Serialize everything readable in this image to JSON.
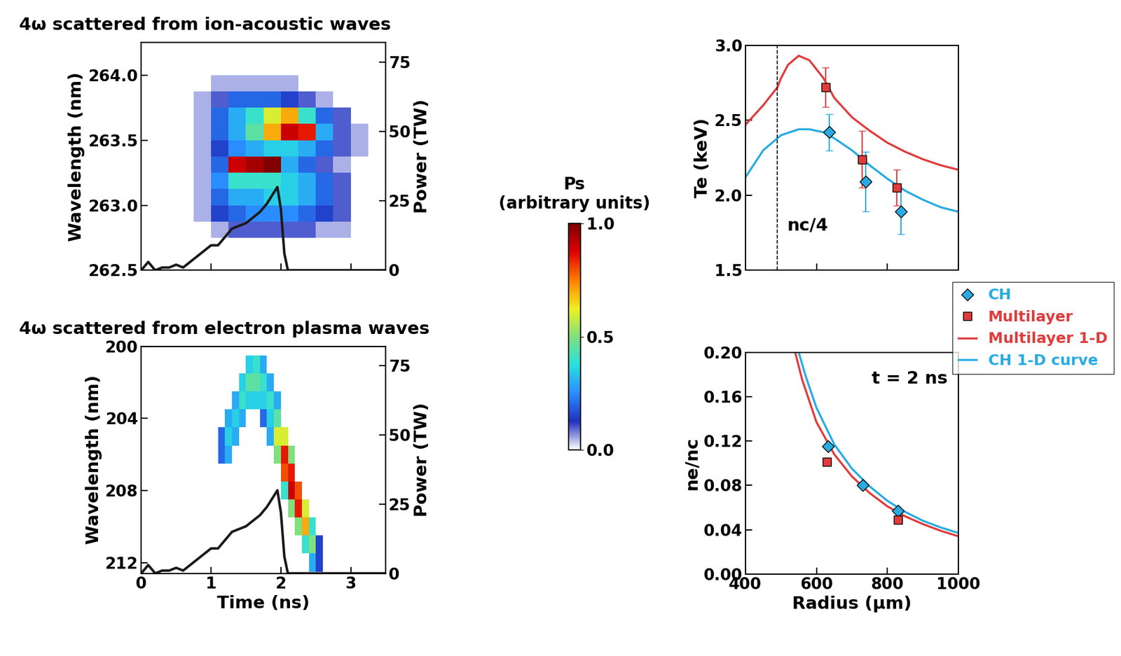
{
  "chart_data": [
    {
      "type": "heatmap",
      "title": "4ω scattered from ion-acoustic waves",
      "ylabel": "Wavelength (nm)",
      "y2label": "Power (TW)",
      "xlim": [
        0,
        3.5
      ],
      "xticks": [
        0,
        1,
        2,
        3
      ],
      "ylim": [
        262.5,
        264.25
      ],
      "yticks": [
        262.5,
        263.0,
        263.5,
        264.0
      ],
      "y2lim": [
        0,
        82
      ],
      "y2ticks": [
        0,
        25,
        50,
        75
      ],
      "tick_labels": "y",
      "x_edges": [
        0.75,
        1.0,
        1.25,
        1.5,
        1.75,
        2.0,
        2.25,
        2.5,
        2.75,
        3.0,
        3.25
      ],
      "y_edges": [
        262.75,
        262.875,
        263.0,
        263.125,
        263.25,
        263.375,
        263.5,
        263.625,
        263.75,
        263.875,
        264.0
      ],
      "cells": [
        [
          0,
          0.05,
          0.1,
          0.1,
          0.1,
          0.1,
          0.1,
          0.05,
          0.05,
          0
        ],
        [
          0.05,
          0.15,
          0.2,
          0.25,
          0.25,
          0.25,
          0.2,
          0.15,
          0.1,
          0
        ],
        [
          0.05,
          0.2,
          0.3,
          0.3,
          0.35,
          0.35,
          0.3,
          0.2,
          0.1,
          0
        ],
        [
          0.05,
          0.25,
          0.4,
          0.4,
          0.4,
          0.35,
          0.3,
          0.2,
          0.1,
          0
        ],
        [
          0.05,
          0.2,
          0.9,
          0.95,
          1.0,
          0.3,
          0.2,
          0.1,
          0.05,
          0
        ],
        [
          0.05,
          0.15,
          0.25,
          0.3,
          0.35,
          0.35,
          0.3,
          0.2,
          0.1,
          0.05
        ],
        [
          0.05,
          0.2,
          0.3,
          0.45,
          0.7,
          0.9,
          0.85,
          0.3,
          0.1,
          0.05
        ],
        [
          0.05,
          0.2,
          0.3,
          0.4,
          0.6,
          0.7,
          0.4,
          0.2,
          0.1,
          0
        ],
        [
          0.05,
          0.1,
          0.2,
          0.2,
          0.2,
          0.15,
          0.1,
          0.05,
          0,
          0
        ],
        [
          0,
          0.05,
          0.05,
          0.05,
          0.05,
          0.05,
          0,
          0,
          0,
          0
        ]
      ],
      "colorbar": {
        "label": "Ps (arbitrary units)",
        "lim": [
          0,
          1
        ],
        "ticks": [
          0.0,
          0.5,
          1.0
        ]
      },
      "series": [
        {
          "type": "line",
          "axis": "y2",
          "color": "#1a1a1a",
          "x": [
            0,
            0.1,
            0.2,
            0.3,
            0.4,
            0.5,
            0.6,
            0.7,
            0.8,
            0.9,
            1.0,
            1.1,
            1.2,
            1.3,
            1.4,
            1.5,
            1.6,
            1.7,
            1.8,
            1.9,
            1.95,
            2.0,
            2.05,
            2.1,
            2.5,
            3.0,
            3.5
          ],
          "values": [
            0,
            3,
            0,
            1,
            1,
            2,
            1,
            3,
            5,
            7,
            9,
            9,
            12,
            15,
            16,
            17,
            19,
            21,
            24,
            28,
            30,
            22,
            6,
            0,
            0,
            0,
            0
          ]
        }
      ]
    },
    {
      "type": "heatmap",
      "title": "4ω scattered from electron plasma waves",
      "xlabel": "Time (ns)",
      "ylabel": "Wavelength (nm)",
      "y2label": "Power (TW)",
      "xlim": [
        0,
        3.5
      ],
      "xticks": [
        0,
        1,
        2,
        3
      ],
      "ylim": [
        212.6,
        200
      ],
      "yticks": [
        200,
        204,
        208,
        212
      ],
      "y2lim": [
        0,
        82
      ],
      "y2ticks": [
        0,
        25,
        50,
        75
      ],
      "x_edges": [
        1.1,
        1.2,
        1.3,
        1.4,
        1.5,
        1.6,
        1.7,
        1.8,
        1.9,
        2.0,
        2.1,
        2.2,
        2.3,
        2.4,
        2.5,
        2.6
      ],
      "y_edges": [
        200.5,
        201.5,
        202.5,
        203.5,
        204.5,
        205.5,
        206.5,
        207.5,
        208.5,
        209.5,
        210.5,
        211.5,
        212.5
      ],
      "cells": [
        [
          0,
          0,
          0,
          0,
          0.35,
          0.4,
          0.3,
          0,
          0,
          0,
          0,
          0,
          0,
          0,
          0
        ],
        [
          0,
          0,
          0,
          0.35,
          0.45,
          0.45,
          0.4,
          0.3,
          0,
          0,
          0,
          0,
          0,
          0,
          0
        ],
        [
          0,
          0,
          0.3,
          0.4,
          0.35,
          0.35,
          0.35,
          0.4,
          0.3,
          0,
          0,
          0,
          0,
          0,
          0
        ],
        [
          0,
          0.3,
          0.35,
          0.3,
          0,
          0,
          0.2,
          0.35,
          0.45,
          0,
          0,
          0,
          0,
          0,
          0
        ],
        [
          0.2,
          0.35,
          0.3,
          0,
          0,
          0,
          0,
          0.3,
          0.6,
          0.6,
          0,
          0,
          0,
          0,
          0
        ],
        [
          0.2,
          0.3,
          0,
          0,
          0,
          0,
          0,
          0,
          0.5,
          0.85,
          0.5,
          0,
          0,
          0,
          0
        ],
        [
          0,
          0,
          0,
          0,
          0,
          0,
          0,
          0,
          0,
          0.8,
          0.85,
          0,
          0,
          0,
          0
        ],
        [
          0,
          0,
          0,
          0,
          0,
          0,
          0,
          0,
          0,
          0.4,
          0.9,
          0.8,
          0,
          0,
          0
        ],
        [
          0,
          0,
          0,
          0,
          0,
          0,
          0,
          0,
          0,
          0,
          0.5,
          0.85,
          0.6,
          0,
          0
        ],
        [
          0,
          0,
          0,
          0,
          0,
          0,
          0,
          0,
          0,
          0,
          0,
          0.5,
          0.7,
          0.4,
          0
        ],
        [
          0,
          0,
          0,
          0,
          0,
          0,
          0,
          0,
          0,
          0,
          0,
          0,
          0.4,
          0.5,
          0.15
        ],
        [
          0,
          0,
          0,
          0,
          0,
          0,
          0,
          0,
          0,
          0,
          0,
          0,
          0,
          0.3,
          0.15
        ]
      ],
      "series": [
        {
          "type": "line",
          "axis": "y2",
          "color": "#1a1a1a",
          "x": [
            0,
            0.1,
            0.2,
            0.3,
            0.4,
            0.5,
            0.6,
            0.7,
            0.8,
            0.9,
            1.0,
            1.1,
            1.2,
            1.3,
            1.4,
            1.5,
            1.6,
            1.7,
            1.8,
            1.9,
            1.95,
            2.0,
            2.05,
            2.1,
            2.5,
            3.0,
            3.5
          ],
          "values": [
            0,
            3,
            0,
            1,
            1,
            2,
            1,
            3,
            5,
            7,
            9,
            9,
            12,
            15,
            16,
            17,
            19,
            21,
            24,
            28,
            30,
            22,
            6,
            0,
            0,
            0,
            0
          ]
        }
      ]
    },
    {
      "type": "line",
      "ylabel": "Te (keV)",
      "xlim": [
        400,
        1000
      ],
      "xticks": [
        400,
        600,
        800,
        1000
      ],
      "ylim": [
        1.5,
        3.0
      ],
      "yticks": [
        1.5,
        2.0,
        2.5,
        3.0
      ],
      "tick_labels": "y",
      "legend": "center right",
      "vline": 490,
      "vline_label": "nc/4",
      "series": [
        {
          "name": "CH",
          "type": "scatter",
          "marker": "diamond",
          "color": "#29abe2",
          "x": [
            636,
            738,
            838
          ],
          "values": [
            2.42,
            2.09,
            1.89
          ],
          "error": [
            0.12,
            0.2,
            0.15
          ]
        },
        {
          "name": "Multilayer",
          "type": "scatter",
          "marker": "square",
          "color": "#e03c3c",
          "x": [
            626,
            729,
            827
          ],
          "values": [
            2.72,
            2.24,
            2.05
          ],
          "error": [
            0.13,
            0.19,
            0.12
          ]
        },
        {
          "name": "Multilayer 1-D",
          "type": "line",
          "color": "#e03c3c",
          "x": [
            400,
            450,
            490,
            500,
            520,
            550,
            580,
            620,
            650,
            700,
            750,
            800,
            850,
            900,
            950,
            1000
          ],
          "values": [
            2.47,
            2.6,
            2.72,
            2.78,
            2.87,
            2.93,
            2.9,
            2.78,
            2.65,
            2.52,
            2.43,
            2.35,
            2.29,
            2.24,
            2.2,
            2.17
          ]
        },
        {
          "name": "CH 1-D curve",
          "type": "line",
          "color": "#29abe2",
          "x": [
            400,
            450,
            500,
            550,
            580,
            620,
            650,
            700,
            750,
            800,
            850,
            900,
            950,
            1000
          ],
          "values": [
            2.12,
            2.3,
            2.4,
            2.44,
            2.44,
            2.42,
            2.38,
            2.3,
            2.2,
            2.11,
            2.03,
            1.97,
            1.92,
            1.89
          ]
        }
      ]
    },
    {
      "type": "line",
      "xlabel": "Radius (µm)",
      "ylabel": "ne/nc",
      "annotation": "t = 2 ns",
      "xlim": [
        400,
        1000
      ],
      "xticks": [
        400,
        600,
        800,
        1000
      ],
      "ylim": [
        0,
        0.2
      ],
      "yticks": [
        {
          "value": 0,
          "label": "0.00"
        },
        {
          "value": 0.04,
          "label": "0.04"
        },
        {
          "value": 0.08,
          "label": "0.08"
        },
        {
          "value": 0.12,
          "label": "0.12"
        },
        {
          "value": 0.16,
          "label": "0.16"
        },
        {
          "value": 0.2,
          "label": "0.20"
        }
      ],
      "series": [
        {
          "name": "CH",
          "type": "scatter",
          "marker": "diamond",
          "color": "#29abe2",
          "x": [
            632,
            730,
            830
          ],
          "values": [
            0.115,
            0.08,
            0.057
          ]
        },
        {
          "name": "Multilayer",
          "type": "scatter",
          "marker": "square",
          "color": "#e03c3c",
          "x": [
            630,
            830
          ],
          "values": [
            0.101,
            0.049
          ]
        },
        {
          "name": "Multilayer 1-D",
          "type": "line",
          "color": "#e03c3c",
          "x": [
            540,
            560,
            600,
            650,
            700,
            750,
            800,
            850,
            900,
            950,
            1000
          ],
          "values": [
            0.2,
            0.175,
            0.137,
            0.108,
            0.088,
            0.073,
            0.061,
            0.052,
            0.045,
            0.039,
            0.034
          ]
        },
        {
          "name": "CH 1-D curve",
          "type": "line",
          "color": "#29abe2",
          "x": [
            550,
            570,
            600,
            650,
            700,
            750,
            800,
            850,
            900,
            950,
            1000
          ],
          "values": [
            0.2,
            0.178,
            0.15,
            0.117,
            0.095,
            0.079,
            0.066,
            0.056,
            0.048,
            0.042,
            0.037
          ]
        }
      ]
    }
  ]
}
